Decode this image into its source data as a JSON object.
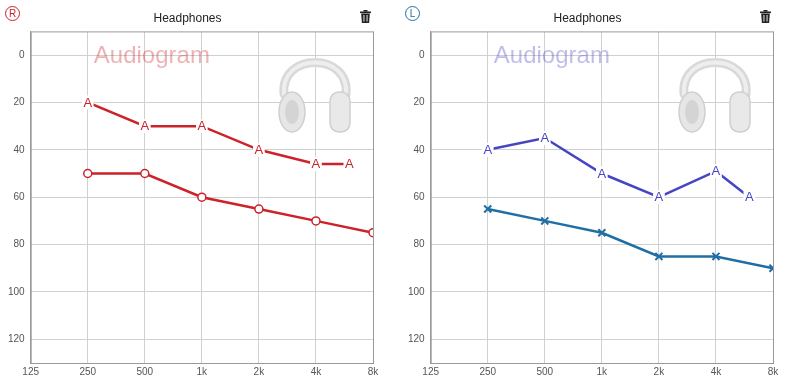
{
  "chart_data": [
    {
      "type": "line",
      "title": "Headphones",
      "annotations": [
        "R",
        "Audiogram"
      ],
      "log": "x",
      "xlim": [
        125,
        8000
      ],
      "xticks": [
        125,
        250,
        500,
        {
          "value": 1000,
          "label": "1k"
        },
        {
          "value": 2000,
          "label": "2k"
        },
        {
          "value": 4000,
          "label": "4k"
        },
        {
          "value": 8000,
          "label": "8k"
        }
      ],
      "ylim": [
        130,
        -10
      ],
      "yticks": [
        0,
        20,
        40,
        60,
        80,
        100,
        120
      ],
      "grid": true,
      "series": [
        {
          "color": "#cc2229",
          "marker": "A",
          "x": [
            250,
            500,
            1000,
            2000,
            4000,
            6000
          ],
          "values": [
            20,
            30,
            30,
            40,
            46,
            46
          ]
        },
        {
          "color": "#cc2229",
          "marker": "o",
          "x": [
            250,
            500,
            1000,
            2000,
            4000,
            8000
          ],
          "values": [
            50,
            50,
            60,
            65,
            70,
            75
          ]
        }
      ]
    },
    {
      "type": "line",
      "title": "Headphones",
      "annotations": [
        "L",
        "Audiogram"
      ],
      "log": "x",
      "xlim": [
        125,
        8000
      ],
      "xticks": [
        125,
        250,
        500,
        {
          "value": 1000,
          "label": "1k"
        },
        {
          "value": 2000,
          "label": "2k"
        },
        {
          "value": 4000,
          "label": "4k"
        },
        {
          "value": 8000,
          "label": "8k"
        }
      ],
      "ylim": [
        130,
        -10
      ],
      "yticks": [
        0,
        20,
        40,
        60,
        80,
        100,
        120
      ],
      "grid": true,
      "series": [
        {
          "color": "#4646c4",
          "marker": "A",
          "x": [
            250,
            500,
            1000,
            2000,
            4000,
            6000
          ],
          "values": [
            40,
            35,
            50,
            60,
            49,
            60
          ]
        },
        {
          "color": "#1f6fa5",
          "marker": "x",
          "x": [
            250,
            500,
            1000,
            2000,
            4000,
            8000
          ],
          "values": [
            65,
            70,
            75,
            85,
            85,
            90
          ]
        }
      ]
    }
  ]
}
